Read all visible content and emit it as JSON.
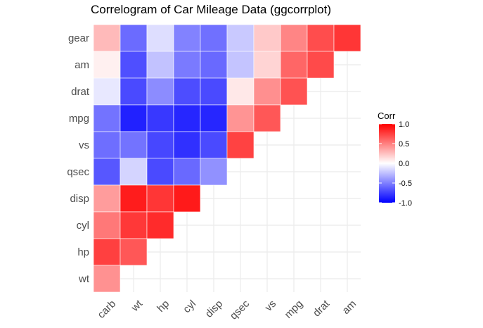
{
  "chart_data": {
    "type": "heatmap",
    "title": "Correlogram of Car Mileage Data (ggcorrplot)",
    "xlabel": "",
    "ylabel": "",
    "x_categories": [
      "carb",
      "wt",
      "hp",
      "cyl",
      "disp",
      "qsec",
      "vs",
      "mpg",
      "drat",
      "am"
    ],
    "y_categories": [
      "gear",
      "am",
      "drat",
      "mpg",
      "vs",
      "qsec",
      "disp",
      "cyl",
      "hp",
      "wt"
    ],
    "cells": [
      {
        "x": "carb",
        "y": "gear",
        "value": 0.27
      },
      {
        "x": "wt",
        "y": "gear",
        "value": -0.58
      },
      {
        "x": "hp",
        "y": "gear",
        "value": -0.13
      },
      {
        "x": "cyl",
        "y": "gear",
        "value": -0.49
      },
      {
        "x": "disp",
        "y": "gear",
        "value": -0.56
      },
      {
        "x": "qsec",
        "y": "gear",
        "value": -0.21
      },
      {
        "x": "vs",
        "y": "gear",
        "value": 0.21
      },
      {
        "x": "mpg",
        "y": "gear",
        "value": 0.48
      },
      {
        "x": "drat",
        "y": "gear",
        "value": 0.7
      },
      {
        "x": "am",
        "y": "gear",
        "value": 0.79
      },
      {
        "x": "carb",
        "y": "am",
        "value": 0.06
      },
      {
        "x": "wt",
        "y": "am",
        "value": -0.69
      },
      {
        "x": "hp",
        "y": "am",
        "value": -0.24
      },
      {
        "x": "cyl",
        "y": "am",
        "value": -0.52
      },
      {
        "x": "disp",
        "y": "am",
        "value": -0.59
      },
      {
        "x": "qsec",
        "y": "am",
        "value": -0.23
      },
      {
        "x": "vs",
        "y": "am",
        "value": 0.17
      },
      {
        "x": "mpg",
        "y": "am",
        "value": 0.6
      },
      {
        "x": "drat",
        "y": "am",
        "value": 0.71
      },
      {
        "x": "carb",
        "y": "drat",
        "value": -0.09
      },
      {
        "x": "wt",
        "y": "drat",
        "value": -0.71
      },
      {
        "x": "hp",
        "y": "drat",
        "value": -0.45
      },
      {
        "x": "cyl",
        "y": "drat",
        "value": -0.7
      },
      {
        "x": "disp",
        "y": "drat",
        "value": -0.71
      },
      {
        "x": "qsec",
        "y": "drat",
        "value": 0.09
      },
      {
        "x": "vs",
        "y": "drat",
        "value": 0.44
      },
      {
        "x": "mpg",
        "y": "drat",
        "value": 0.68
      },
      {
        "x": "carb",
        "y": "mpg",
        "value": -0.55
      },
      {
        "x": "wt",
        "y": "mpg",
        "value": -0.87
      },
      {
        "x": "hp",
        "y": "mpg",
        "value": -0.78
      },
      {
        "x": "cyl",
        "y": "mpg",
        "value": -0.85
      },
      {
        "x": "disp",
        "y": "mpg",
        "value": -0.85
      },
      {
        "x": "qsec",
        "y": "mpg",
        "value": 0.42
      },
      {
        "x": "vs",
        "y": "mpg",
        "value": 0.66
      },
      {
        "x": "carb",
        "y": "vs",
        "value": -0.57
      },
      {
        "x": "wt",
        "y": "vs",
        "value": -0.55
      },
      {
        "x": "hp",
        "y": "vs",
        "value": -0.72
      },
      {
        "x": "cyl",
        "y": "vs",
        "value": -0.81
      },
      {
        "x": "disp",
        "y": "vs",
        "value": -0.71
      },
      {
        "x": "qsec",
        "y": "vs",
        "value": 0.74
      },
      {
        "x": "carb",
        "y": "qsec",
        "value": -0.66
      },
      {
        "x": "wt",
        "y": "qsec",
        "value": -0.17
      },
      {
        "x": "hp",
        "y": "qsec",
        "value": -0.71
      },
      {
        "x": "cyl",
        "y": "qsec",
        "value": -0.59
      },
      {
        "x": "disp",
        "y": "qsec",
        "value": -0.43
      },
      {
        "x": "carb",
        "y": "disp",
        "value": 0.39
      },
      {
        "x": "wt",
        "y": "disp",
        "value": 0.89
      },
      {
        "x": "hp",
        "y": "disp",
        "value": 0.79
      },
      {
        "x": "cyl",
        "y": "disp",
        "value": 0.9
      },
      {
        "x": "carb",
        "y": "cyl",
        "value": 0.53
      },
      {
        "x": "wt",
        "y": "cyl",
        "value": 0.78
      },
      {
        "x": "hp",
        "y": "cyl",
        "value": 0.83
      },
      {
        "x": "carb",
        "y": "hp",
        "value": 0.75
      },
      {
        "x": "wt",
        "y": "hp",
        "value": 0.66
      },
      {
        "x": "carb",
        "y": "wt",
        "value": 0.43
      }
    ],
    "legend": {
      "title": "Corr",
      "ticks": [
        "1.0",
        "0.5",
        "0.0",
        "-0.5",
        "-1.0"
      ],
      "tick_values": [
        1.0,
        0.5,
        0.0,
        -0.5,
        -1.0
      ],
      "range": [
        -1,
        1
      ],
      "placement": "right"
    },
    "color_scale": {
      "low": "#0000ff",
      "mid": "#ffffff",
      "high": "#ff0000"
    },
    "grid": true
  },
  "colors": {
    "gridline": "#ebebeb",
    "cell_border": "#ffffff",
    "axis_text": "#4d4d4d",
    "title_text": "#000000"
  }
}
